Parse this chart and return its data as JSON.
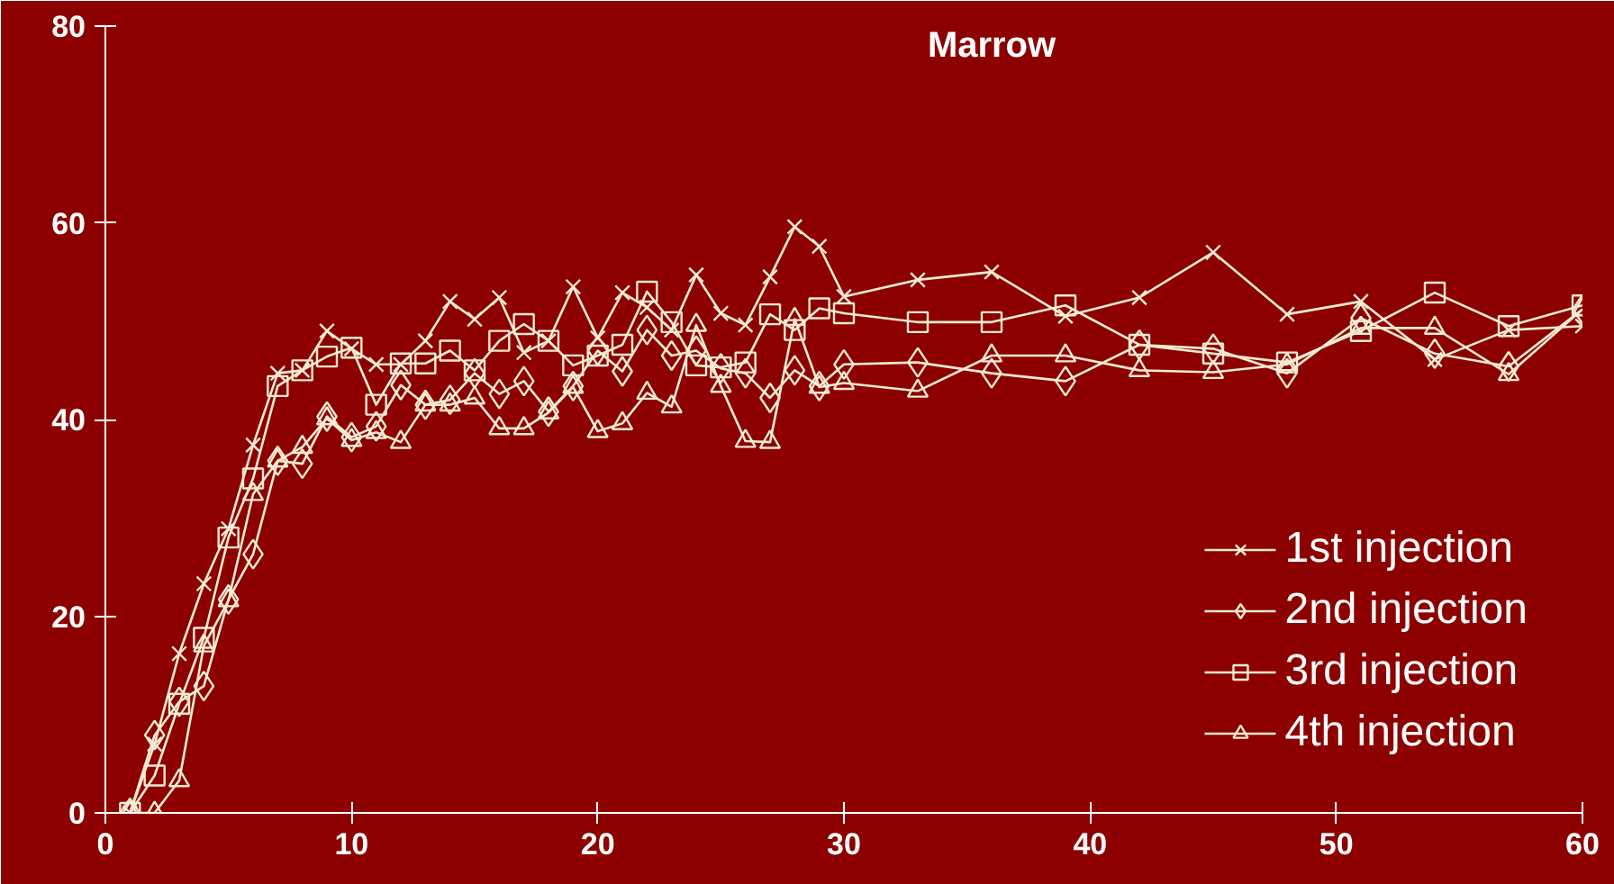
{
  "chart_data": {
    "type": "line",
    "title": "Marrow",
    "x": [
      1,
      2,
      3,
      4,
      5,
      6,
      7,
      8,
      9,
      10,
      11,
      12,
      13,
      14,
      15,
      16,
      17,
      18,
      19,
      20,
      21,
      22,
      23,
      24,
      25,
      26,
      27,
      28,
      29,
      30,
      33,
      36,
      39,
      42,
      45,
      48,
      51,
      54,
      57,
      60
    ],
    "series": [
      {
        "name": "1st injection",
        "color": "#f5ebd2",
        "marker": "cross",
        "values": [
          0,
          7,
          16.2,
          23.3,
          28.9,
          37.4,
          44.7,
          45,
          49,
          47.2,
          45.6,
          45.6,
          48,
          52,
          50.2,
          52.4,
          46.8,
          48,
          53.5,
          48.3,
          52.9,
          51.4,
          49.1,
          54.7,
          50.8,
          49.6,
          54.5,
          59.6,
          57.6,
          52.5,
          54.2,
          55,
          50.5,
          52.4,
          57,
          50.7,
          52,
          46.1,
          49.1,
          49.5
        ]
      },
      {
        "name": "2nd injection",
        "color": "#f5ebd2",
        "marker": "diamond",
        "values": [
          0,
          7.9,
          11.3,
          12.9,
          21.7,
          26.3,
          35.8,
          35.5,
          40.3,
          38.2,
          39.3,
          43.5,
          41.5,
          42,
          44.7,
          42.6,
          43.9,
          40.8,
          43.4,
          47,
          44.9,
          49.1,
          46.5,
          47,
          45.2,
          44.7,
          42.2,
          45,
          43.4,
          45.6,
          45.8,
          44.7,
          43.9,
          47.6,
          47.2,
          44.7,
          50.3,
          46.7,
          45.4,
          51.2
        ]
      },
      {
        "name": "3rd injection",
        "color": "#f5ebd2",
        "marker": "square",
        "values": [
          0,
          3.8,
          11.1,
          17.8,
          28,
          34,
          43.4,
          45,
          46.4,
          47.3,
          41.5,
          45.7,
          45.7,
          47,
          45,
          48,
          49.7,
          48,
          45.5,
          46.5,
          47.6,
          53,
          49.9,
          45.5,
          45.3,
          45.8,
          50.7,
          49.1,
          51.3,
          50.8,
          49.9,
          49.9,
          51.6,
          47.6,
          46.7,
          45.8,
          49,
          52.9,
          49.5,
          51.6
        ]
      },
      {
        "name": "4th injection",
        "color": "#f5ebd2",
        "marker": "triangle",
        "values": [
          0,
          0,
          3.3,
          17,
          21.6,
          32.4,
          35.8,
          37.2,
          40.1,
          37.9,
          38.7,
          37.7,
          41.5,
          41.5,
          42.2,
          39.1,
          39.1,
          40.7,
          43.3,
          38.8,
          39.6,
          42.7,
          41.3,
          49.6,
          43.4,
          37.8,
          37.7,
          50.2,
          43.3,
          43.7,
          42.9,
          46.5,
          46.5,
          45,
          44.8,
          45.6,
          49.3,
          49.3,
          44.6,
          51.2
        ]
      }
    ],
    "xlim": [
      0,
      60
    ],
    "ylim": [
      0,
      80
    ],
    "xticks": [
      0,
      10,
      20,
      30,
      40,
      50,
      60
    ],
    "yticks": [
      0,
      20,
      40,
      60,
      80
    ],
    "grid": false,
    "legend": "bottom right",
    "line_style": "solid"
  }
}
